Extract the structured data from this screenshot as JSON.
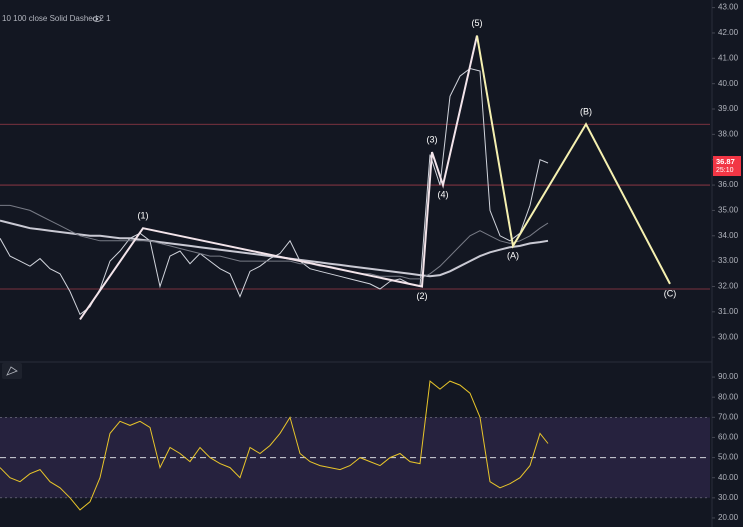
{
  "chart_data": [
    {
      "type": "line",
      "subtitle": "10 100 close Solid Dashed 2 1",
      "x": [
        0,
        10,
        20,
        30,
        40,
        50,
        60,
        70,
        80,
        90,
        100,
        110,
        120,
        130,
        140,
        150,
        160,
        170,
        180,
        190,
        200,
        210,
        220,
        230,
        240,
        250,
        260,
        270,
        280,
        290,
        300,
        310,
        320,
        330,
        340,
        350,
        360,
        370,
        380,
        390,
        400,
        410,
        420,
        430,
        440,
        450,
        460,
        470,
        480,
        490,
        500,
        510,
        520,
        530,
        540,
        548
      ],
      "xlim": [
        0,
        710
      ],
      "series": [
        {
          "color": "#d1d4dc",
          "values": [
            33.9,
            33.2,
            33.0,
            32.8,
            33.1,
            32.7,
            32.5,
            31.8,
            30.9,
            31.2,
            31.9,
            33.0,
            33.4,
            33.9,
            34.1,
            33.8,
            32.0,
            33.2,
            33.4,
            32.9,
            33.3,
            33.0,
            32.7,
            32.5,
            31.6,
            32.6,
            32.8,
            33.1,
            33.3,
            33.8,
            33.0,
            32.7,
            32.6,
            32.5,
            32.4,
            32.3,
            32.2,
            32.1,
            31.9,
            32.2,
            32.3,
            32.1,
            32.0,
            37.2,
            36.0,
            39.5,
            40.3,
            40.6,
            40.5,
            35.0,
            34.0,
            33.8,
            34.1,
            35.2,
            37.0,
            36.87
          ]
        },
        {
          "color": "#c9c9d3",
          "values": [
            34.6,
            34.5,
            34.4,
            34.3,
            34.25,
            34.2,
            34.15,
            34.1,
            34.05,
            34.0,
            34.0,
            33.95,
            33.9,
            33.9,
            33.85,
            33.8,
            33.75,
            33.7,
            33.65,
            33.6,
            33.55,
            33.5,
            33.45,
            33.4,
            33.35,
            33.3,
            33.25,
            33.2,
            33.15,
            33.1,
            33.05,
            33.0,
            32.95,
            32.9,
            32.85,
            32.8,
            32.75,
            32.7,
            32.65,
            32.6,
            32.55,
            32.5,
            32.45,
            32.4,
            32.45,
            32.6,
            32.8,
            33.0,
            33.2,
            33.35,
            33.45,
            33.55,
            33.6,
            33.7,
            33.75,
            33.8
          ]
        },
        {
          "color": "#787b86",
          "values": [
            35.2,
            35.2,
            35.1,
            35.0,
            34.8,
            34.6,
            34.4,
            34.2,
            34.0,
            33.9,
            33.8,
            33.8,
            33.8,
            33.8,
            33.8,
            33.8,
            33.7,
            33.6,
            33.5,
            33.4,
            33.3,
            33.2,
            33.2,
            33.1,
            33.0,
            33.0,
            33.0,
            33.0,
            33.0,
            33.0,
            32.9,
            32.9,
            32.8,
            32.8,
            32.7,
            32.6,
            32.5,
            32.5,
            32.4,
            32.4,
            32.4,
            32.3,
            32.3,
            32.5,
            32.8,
            33.2,
            33.6,
            34.0,
            34.2,
            34.0,
            33.8,
            33.7,
            33.8,
            34.0,
            34.3,
            34.5
          ]
        }
      ],
      "ylim": [
        29.1,
        43.3
      ],
      "yticks": [
        {
          "value": 30,
          "label": "30.00"
        },
        {
          "value": 31,
          "label": "31.00"
        },
        {
          "value": 32,
          "label": "32.00"
        },
        {
          "value": 33,
          "label": "33.00"
        },
        {
          "value": 34,
          "label": "34.00"
        },
        {
          "value": 35,
          "label": "35.00"
        },
        {
          "value": 36,
          "label": "36.00"
        },
        {
          "value": 37,
          "label": "37.00"
        },
        {
          "value": 38,
          "label": "38.00"
        },
        {
          "value": 39,
          "label": "39.00"
        },
        {
          "value": 40,
          "label": "40.00"
        },
        {
          "value": 41,
          "label": "41.00"
        },
        {
          "value": 42,
          "label": "42.00"
        },
        {
          "value": 43,
          "label": "43.00"
        }
      ],
      "hlines": [
        38.4,
        36.0,
        31.9
      ],
      "hline_color": "#9c3b48",
      "waves": [
        {
          "color": "#f3e4ea",
          "points": [
            {
              "x": 80,
              "y": 30.7,
              "label": null
            },
            {
              "x": 143,
              "y": 34.3,
              "label": "(1)"
            },
            {
              "x": 422,
              "y": 32.0,
              "label": "(2)"
            },
            {
              "x": 432,
              "y": 37.3,
              "label": "(3)"
            },
            {
              "x": 443,
              "y": 36.0,
              "label": "(4)"
            },
            {
              "x": 477,
              "y": 41.9,
              "label": "(5)"
            }
          ]
        },
        {
          "color": "#f5f0b0",
          "points": [
            {
              "x": 477,
              "y": 41.9,
              "label": null
            },
            {
              "x": 513,
              "y": 33.6,
              "label": "(A)"
            },
            {
              "x": 586,
              "y": 38.4,
              "label": "(B)"
            },
            {
              "x": 670,
              "y": 32.1,
              "label": "(C)"
            }
          ]
        }
      ],
      "last_price": 36.87,
      "countdown": "25:10",
      "last_color": "#f23645"
    },
    {
      "type": "line",
      "x": [
        0,
        10,
        20,
        30,
        40,
        50,
        60,
        70,
        80,
        90,
        100,
        110,
        120,
        130,
        140,
        150,
        160,
        170,
        180,
        190,
        200,
        210,
        220,
        230,
        240,
        250,
        260,
        270,
        280,
        290,
        300,
        310,
        320,
        330,
        340,
        350,
        360,
        370,
        380,
        390,
        400,
        410,
        420,
        430,
        440,
        450,
        460,
        470,
        480,
        490,
        500,
        510,
        520,
        530,
        540,
        548
      ],
      "xlim": [
        0,
        710
      ],
      "series": [
        {
          "color": "#e8c52a",
          "values": [
            45,
            40,
            38,
            42,
            44,
            38,
            35,
            30,
            24,
            28,
            40,
            62,
            68,
            66,
            68,
            65,
            45,
            55,
            52,
            48,
            55,
            50,
            47,
            45,
            40,
            55,
            52,
            56,
            62,
            70,
            52,
            48,
            46,
            45,
            44,
            46,
            50,
            48,
            46,
            50,
            52,
            48,
            47,
            88,
            84,
            88,
            86,
            82,
            70,
            38,
            35,
            37,
            40,
            46,
            62,
            57
          ]
        }
      ],
      "ylim": [
        15.5,
        96
      ],
      "yticks": [
        {
          "value": 20,
          "label": "20.00"
        },
        {
          "value": 30,
          "label": "30.00"
        },
        {
          "value": 40,
          "label": "40.00"
        },
        {
          "value": 50,
          "label": "50.00"
        },
        {
          "value": 60,
          "label": "60.00"
        },
        {
          "value": 70,
          "label": "70.00"
        },
        {
          "value": 80,
          "label": "80.00"
        },
        {
          "value": 90,
          "label": "90.00"
        }
      ],
      "band": [
        30,
        70
      ],
      "midline": 50
    }
  ]
}
